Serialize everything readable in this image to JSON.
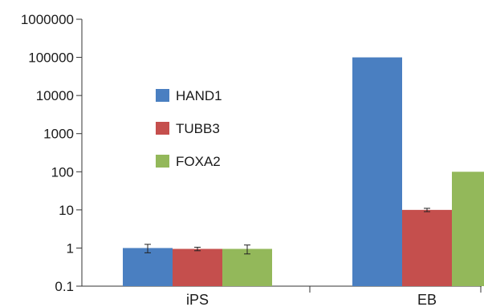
{
  "chart_data": {
    "type": "bar",
    "scale": "log",
    "categories": [
      "iPS",
      "EB"
    ],
    "series": [
      {
        "name": "HAND1",
        "color": "#4a7fc1",
        "values": [
          1,
          100000
        ],
        "errors": [
          0.25,
          null
        ]
      },
      {
        "name": "TUBB3",
        "color": "#c54f4d",
        "values": [
          0.95,
          10
        ],
        "errors": [
          0.1,
          1
        ]
      },
      {
        "name": "FOXA2",
        "color": "#93b85a",
        "values": [
          0.95,
          100
        ],
        "errors": [
          0.25,
          3
        ]
      }
    ],
    "y_ticks": [
      "0.1",
      "1",
      "10",
      "100",
      "1000",
      "10000",
      "100000",
      "1000000"
    ],
    "ylim": [
      0.1,
      1000000
    ],
    "legend_position": "upper-left",
    "grid": false
  }
}
